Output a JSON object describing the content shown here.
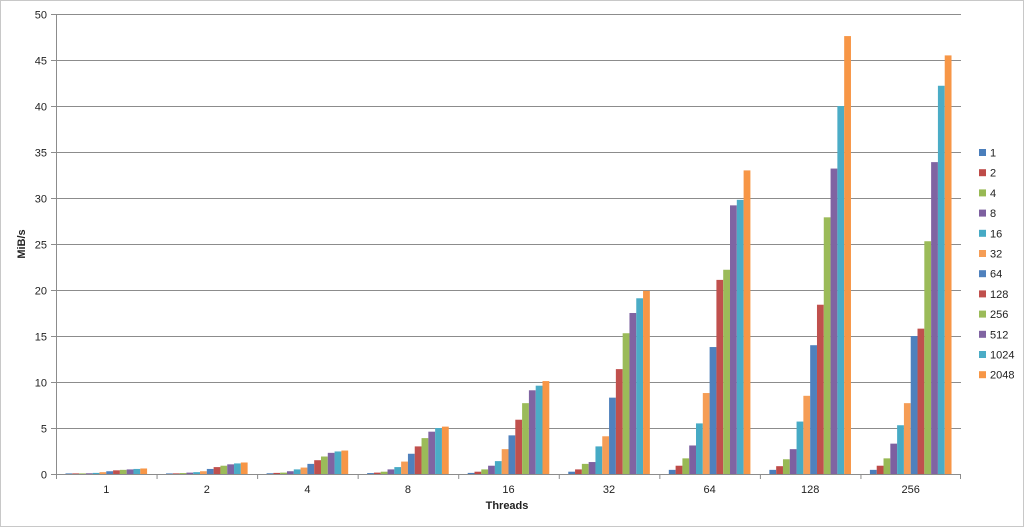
{
  "chart_data": {
    "type": "bar",
    "title": "",
    "xlabel": "Threads",
    "ylabel": "MiB/s",
    "ylim": [
      0,
      50
    ],
    "yticks": [
      0,
      5,
      10,
      15,
      20,
      25,
      30,
      35,
      40,
      45,
      50
    ],
    "grid": "horizontal",
    "legend_position": "right",
    "categories": [
      "1",
      "2",
      "4",
      "8",
      "16",
      "32",
      "64",
      "128",
      "256"
    ],
    "series": [
      {
        "name": "1",
        "color": "#4a7ebb",
        "values": [
          0.02,
          0.05,
          0.08,
          0.1,
          0.12,
          0.25,
          0.45,
          0.45,
          0.45
        ]
      },
      {
        "name": "2",
        "color": "#be4b48",
        "values": [
          0.04,
          0.07,
          0.12,
          0.15,
          0.25,
          0.5,
          0.9,
          0.85,
          0.9
        ]
      },
      {
        "name": "4",
        "color": "#98b954",
        "values": [
          0.05,
          0.1,
          0.15,
          0.25,
          0.5,
          1.1,
          1.7,
          1.6,
          1.7
        ]
      },
      {
        "name": "8",
        "color": "#7d60a0",
        "values": [
          0.08,
          0.15,
          0.3,
          0.5,
          0.9,
          1.3,
          3.1,
          2.7,
          3.3
        ]
      },
      {
        "name": "16",
        "color": "#46aac5",
        "values": [
          0.12,
          0.2,
          0.5,
          0.75,
          1.4,
          3.0,
          5.5,
          5.7,
          5.3
        ]
      },
      {
        "name": "32",
        "color": "#f59d56",
        "values": [
          0.2,
          0.3,
          0.7,
          1.35,
          2.7,
          4.1,
          8.8,
          8.5,
          7.7
        ]
      },
      {
        "name": "64",
        "color": "#4f81bd",
        "values": [
          0.3,
          0.55,
          1.1,
          2.2,
          4.2,
          8.3,
          13.8,
          14.0,
          15.0
        ]
      },
      {
        "name": "128",
        "color": "#c0504d",
        "values": [
          0.4,
          0.75,
          1.5,
          3.0,
          5.9,
          11.4,
          21.1,
          18.4,
          15.8
        ]
      },
      {
        "name": "256",
        "color": "#9bbb59",
        "values": [
          0.45,
          0.9,
          1.9,
          3.9,
          7.7,
          15.3,
          22.2,
          27.9,
          25.3
        ]
      },
      {
        "name": "512",
        "color": "#8064a2",
        "values": [
          0.5,
          1.05,
          2.3,
          4.6,
          9.1,
          17.5,
          29.2,
          33.2,
          33.9
        ]
      },
      {
        "name": "1024",
        "color": "#4bacc6",
        "values": [
          0.55,
          1.15,
          2.45,
          5.0,
          9.6,
          19.1,
          29.8,
          40.0,
          42.2
        ]
      },
      {
        "name": "2048",
        "color": "#f79646",
        "values": [
          0.6,
          1.25,
          2.55,
          5.15,
          10.1,
          19.9,
          33.0,
          47.6,
          45.5
        ]
      }
    ]
  }
}
